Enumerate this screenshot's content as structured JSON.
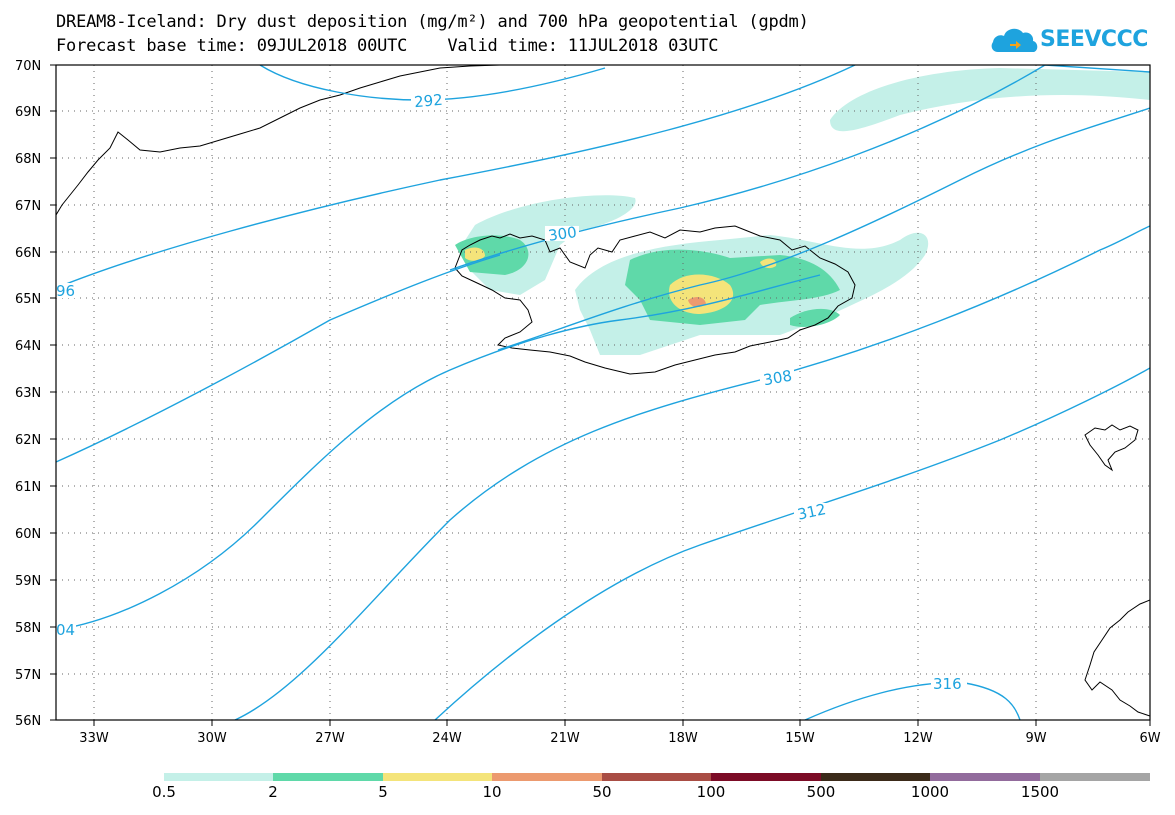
{
  "header": {
    "title_line1": "DREAM8-Iceland: Dry dust deposition (mg/m²) and 700 hPa geopotential (gpdm)",
    "title_line2": "Forecast base time: 09JUL2018 00UTC    Valid time: 11JUL2018 03UTC"
  },
  "logo": {
    "text": "SEEVCCC",
    "icon": "cloud-icon",
    "color": "#1ea3de"
  },
  "map": {
    "lat_labels": [
      "70N",
      "69N",
      "68N",
      "67N",
      "66N",
      "65N",
      "64N",
      "63N",
      "62N",
      "61N",
      "60N",
      "59N",
      "58N",
      "57N",
      "56N"
    ],
    "lon_labels": [
      "33W",
      "30W",
      "27W",
      "24W",
      "21W",
      "18W",
      "15W",
      "12W",
      "9W",
      "6W"
    ],
    "contour_color": "#1ea3de",
    "contour_labels": [
      "292",
      "300",
      "308",
      "312",
      "316",
      "96",
      "04"
    ]
  },
  "colorbar": {
    "labels": [
      "0.5",
      "2",
      "5",
      "10",
      "50",
      "100",
      "500",
      "1000",
      "1500"
    ],
    "colors": [
      "#c4f0e8",
      "#5fd9a9",
      "#f4e47a",
      "#ec9a6f",
      "#a94d44",
      "#7c0b26",
      "#3b2a19",
      "#926b9c",
      "#a5a5a5"
    ]
  }
}
